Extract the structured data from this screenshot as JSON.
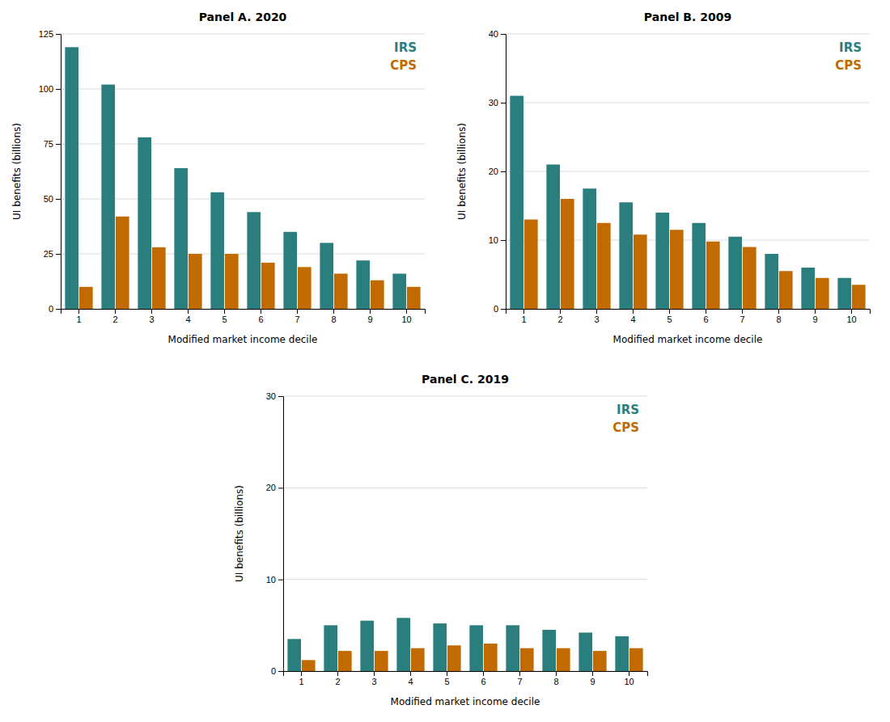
{
  "chart_data": [
    {
      "type": "bar",
      "title": "Panel A. 2020",
      "xlabel": "Modified market income decile",
      "ylabel": "UI benefits (billions)",
      "categories": [
        1,
        2,
        3,
        4,
        5,
        6,
        7,
        8,
        9,
        10
      ],
      "series": [
        {
          "name": "IRS",
          "color": "#2B7E7E",
          "values": [
            119,
            102,
            78,
            64,
            53,
            44,
            35,
            30,
            22,
            16
          ]
        },
        {
          "name": "CPS",
          "color": "#C16A00",
          "values": [
            10,
            42,
            28,
            25,
            25,
            21,
            19,
            16,
            13,
            10
          ]
        }
      ],
      "ylim": [
        0,
        125
      ],
      "yticks": [
        0,
        25,
        50,
        75,
        100,
        125
      ],
      "grid": true
    },
    {
      "type": "bar",
      "title": "Panel B. 2009",
      "xlabel": "Modified market income decile",
      "ylabel": "UI benefits (billions)",
      "categories": [
        1,
        2,
        3,
        4,
        5,
        6,
        7,
        8,
        9,
        10
      ],
      "series": [
        {
          "name": "IRS",
          "color": "#2B7E7E",
          "values": [
            31,
            21,
            17.5,
            15.5,
            14,
            12.5,
            10.5,
            8,
            6,
            4.5
          ]
        },
        {
          "name": "CPS",
          "color": "#C16A00",
          "values": [
            13,
            16,
            12.5,
            10.8,
            11.5,
            9.8,
            9,
            5.5,
            4.5,
            3.5
          ]
        }
      ],
      "ylim": [
        0,
        40
      ],
      "yticks": [
        0,
        10,
        20,
        30,
        40
      ],
      "grid": true
    },
    {
      "type": "bar",
      "title": "Panel C. 2019",
      "xlabel": "Modified market income decile",
      "ylabel": "UI benefits (billions)",
      "categories": [
        1,
        2,
        3,
        4,
        5,
        6,
        7,
        8,
        9,
        10
      ],
      "series": [
        {
          "name": "IRS",
          "color": "#2B7E7E",
          "values": [
            3.5,
            5.0,
            5.5,
            5.8,
            5.2,
            5.0,
            5.0,
            4.5,
            4.2,
            3.8
          ]
        },
        {
          "name": "CPS",
          "color": "#C16A00",
          "values": [
            1.2,
            2.2,
            2.2,
            2.5,
            2.8,
            3.0,
            2.5,
            2.5,
            2.2,
            2.5
          ]
        }
      ],
      "ylim": [
        0,
        30
      ],
      "yticks": [
        0,
        10,
        20,
        30
      ],
      "grid": true
    }
  ]
}
